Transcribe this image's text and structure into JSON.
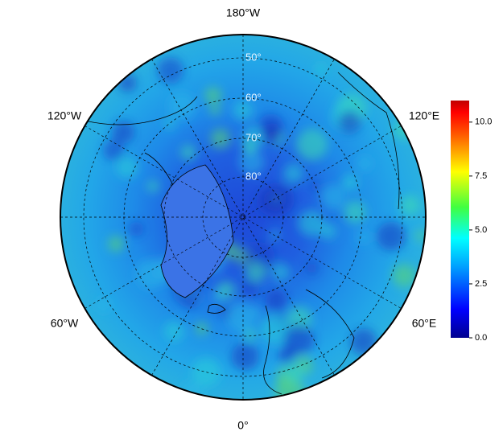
{
  "map": {
    "longitude_labels": [
      "180°W",
      "120°W",
      "120°E",
      "60°W",
      "60°E",
      "0°"
    ],
    "latitude_labels": [
      "50°",
      "60°",
      "70°",
      "80°"
    ]
  },
  "colorbar": {
    "lim": [
      0,
      11
    ],
    "ticks": [
      {
        "value": 0,
        "label": "0.0"
      },
      {
        "value": 2.5,
        "label": "2.5"
      },
      {
        "value": 5,
        "label": "5.0"
      },
      {
        "value": 7.5,
        "label": "7.5"
      },
      {
        "value": 10,
        "label": "10.0"
      }
    ]
  }
}
